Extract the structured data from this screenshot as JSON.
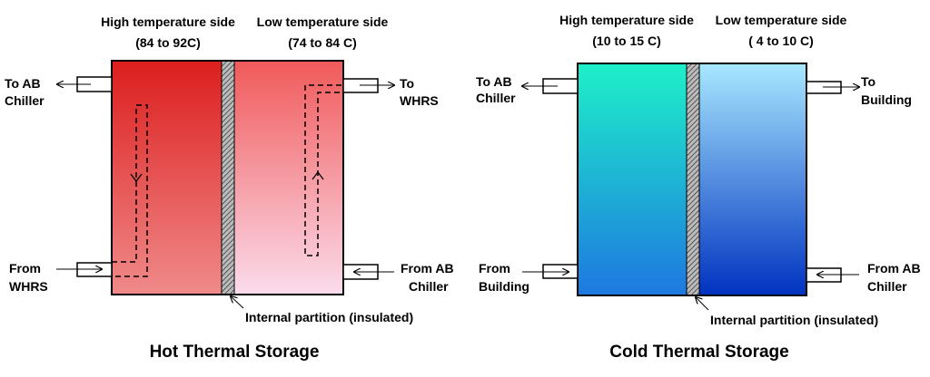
{
  "hot_storage": {
    "title": "Hot Thermal Storage",
    "high_side": {
      "label": "High temperature side",
      "range": "(84 to 92C)"
    },
    "low_side": {
      "label": "Low temperature side",
      "range": "(74 to 84 C)"
    },
    "ports": [
      {
        "line1": "To AB",
        "line2": "Chiller"
      },
      {
        "line1": "To",
        "line2": "WHRS"
      },
      {
        "line1": "From",
        "line2": "WHRS"
      },
      {
        "line1": "From AB",
        "line2": "Chiller"
      }
    ],
    "partition_label": "Internal partition (insulated)"
  },
  "cold_storage": {
    "title": "Cold Thermal Storage",
    "high_side": {
      "label": "High temperature side",
      "range": "(10 to 15 C)"
    },
    "low_side": {
      "label": "Low temperature side",
      "range": "( 4 to 10 C)"
    },
    "ports": [
      {
        "line1": "To AB",
        "line2": "Chiller"
      },
      {
        "line1": "To",
        "line2": "Building"
      },
      {
        "line1": "From",
        "line2": "Building"
      },
      {
        "line1": "From AB",
        "line2": "Chiller"
      }
    ],
    "partition_label": "Internal partition (insulated)"
  }
}
